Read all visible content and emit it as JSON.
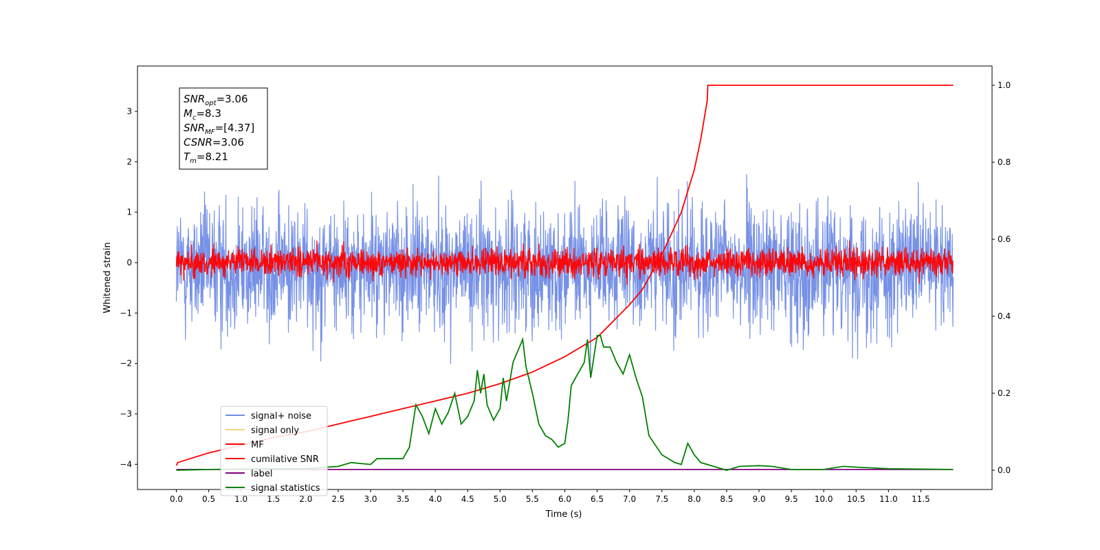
{
  "chart_data": {
    "type": "line",
    "xlabel": "Time (s)",
    "ylabel": "Whitened strain",
    "xlim": [
      -0.6,
      12.6
    ],
    "ylim": [
      -4.5,
      3.9
    ],
    "y2lim": [
      -0.05,
      1.05
    ],
    "x_ticks": [
      "0.0",
      "0.5",
      "1.0",
      "1.5",
      "2.0",
      "2.5",
      "3.0",
      "3.5",
      "4.0",
      "4.5",
      "5.0",
      "5.5",
      "6.0",
      "6.5",
      "7.0",
      "7.5",
      "8.0",
      "8.5",
      "9.0",
      "9.5",
      "10.0",
      "10.5",
      "11.0",
      "11.5"
    ],
    "y_ticks": [
      "3",
      "2",
      "1",
      "0",
      "−1",
      "−2",
      "−3",
      "−4"
    ],
    "y2_ticks": [
      "1.0",
      "0.8",
      "0.6",
      "0.4",
      "0.2",
      "0.0"
    ],
    "annotation": {
      "snr_opt": {
        "base": "SNR",
        "sub": "opt",
        "value": "=3.06"
      },
      "mc": {
        "base": "M",
        "sub": "c",
        "value": "=8.3"
      },
      "snr_mf": {
        "base": "SNR",
        "sub": "MF",
        "value": "=[4.37]"
      },
      "csnr": {
        "base": "CSNR",
        "value": "=3.06"
      },
      "tm": {
        "base": "T",
        "sub": "m",
        "value": "=8.21"
      }
    },
    "legend": {
      "placement": "lower-left",
      "entries": [
        {
          "label": "signal+ noise",
          "color": "#6f8be5"
        },
        {
          "label": "signal only",
          "color": "#f7d27a"
        },
        {
          "label": "MF",
          "color": "#ff0000"
        },
        {
          "label": "cumilative SNR",
          "color": "#ff0000"
        },
        {
          "label": "label",
          "color": "#800080"
        },
        {
          "label": "signal statistics",
          "color": "#008000"
        }
      ]
    },
    "series": [
      {
        "name": "signal+ noise",
        "axis": "left",
        "color": "#6f8be5",
        "kind": "noise",
        "x_range": [
          0,
          12
        ],
        "center": -0.1,
        "spread": 1.6
      },
      {
        "name": "MF",
        "axis": "left",
        "color": "#ff0000",
        "kind": "noise",
        "x_range": [
          0,
          12
        ],
        "center": 0.0,
        "spread": 0.35
      },
      {
        "name": "cumilative SNR",
        "axis": "right",
        "color": "#ff0000",
        "x": [
          0.0,
          0.02,
          0.5,
          1.0,
          1.5,
          2.0,
          2.5,
          3.0,
          3.5,
          4.0,
          4.5,
          5.0,
          5.5,
          6.0,
          6.5,
          7.0,
          7.2,
          7.5,
          7.8,
          8.0,
          8.1,
          8.2,
          8.21,
          12.0
        ],
        "values": [
          0.012,
          0.02,
          0.045,
          0.065,
          0.085,
          0.1,
          0.12,
          0.14,
          0.16,
          0.18,
          0.2,
          0.225,
          0.255,
          0.295,
          0.345,
          0.43,
          0.47,
          0.56,
          0.67,
          0.78,
          0.86,
          0.96,
          1.0,
          1.0
        ]
      },
      {
        "name": "label",
        "axis": "right",
        "color": "#800080",
        "x": [
          0.0,
          12.0
        ],
        "values": [
          0.002,
          0.002
        ]
      },
      {
        "name": "signal statistics",
        "axis": "right",
        "color": "#008000",
        "x": [
          0.0,
          0.5,
          1.0,
          1.5,
          2.0,
          2.5,
          2.7,
          3.0,
          3.1,
          3.5,
          3.6,
          3.7,
          3.8,
          3.9,
          4.0,
          4.1,
          4.2,
          4.3,
          4.4,
          4.5,
          4.6,
          4.65,
          4.7,
          4.75,
          4.8,
          4.9,
          5.0,
          5.05,
          5.1,
          5.2,
          5.3,
          5.35,
          5.4,
          5.5,
          5.6,
          5.7,
          5.8,
          5.9,
          6.0,
          6.05,
          6.1,
          6.2,
          6.3,
          6.35,
          6.4,
          6.5,
          6.55,
          6.6,
          6.7,
          6.8,
          6.9,
          7.0,
          7.1,
          7.2,
          7.3,
          7.5,
          7.7,
          7.8,
          7.9,
          8.0,
          8.1,
          8.3,
          8.5,
          8.7,
          9.0,
          9.2,
          9.5,
          10.0,
          10.3,
          10.5,
          11.0,
          12.0
        ],
        "values": [
          0.0,
          0.002,
          0.003,
          0.004,
          0.004,
          0.01,
          0.02,
          0.015,
          0.03,
          0.03,
          0.06,
          0.17,
          0.14,
          0.095,
          0.16,
          0.12,
          0.15,
          0.2,
          0.12,
          0.14,
          0.18,
          0.26,
          0.2,
          0.25,
          0.17,
          0.13,
          0.16,
          0.24,
          0.18,
          0.28,
          0.32,
          0.34,
          0.27,
          0.2,
          0.12,
          0.09,
          0.08,
          0.06,
          0.07,
          0.13,
          0.22,
          0.25,
          0.28,
          0.34,
          0.24,
          0.35,
          0.35,
          0.32,
          0.32,
          0.28,
          0.25,
          0.3,
          0.24,
          0.19,
          0.09,
          0.04,
          0.02,
          0.015,
          0.07,
          0.04,
          0.02,
          0.01,
          0.0,
          0.01,
          0.012,
          0.01,
          0.002,
          0.002,
          0.01,
          0.008,
          0.004,
          0.002
        ]
      }
    ]
  }
}
